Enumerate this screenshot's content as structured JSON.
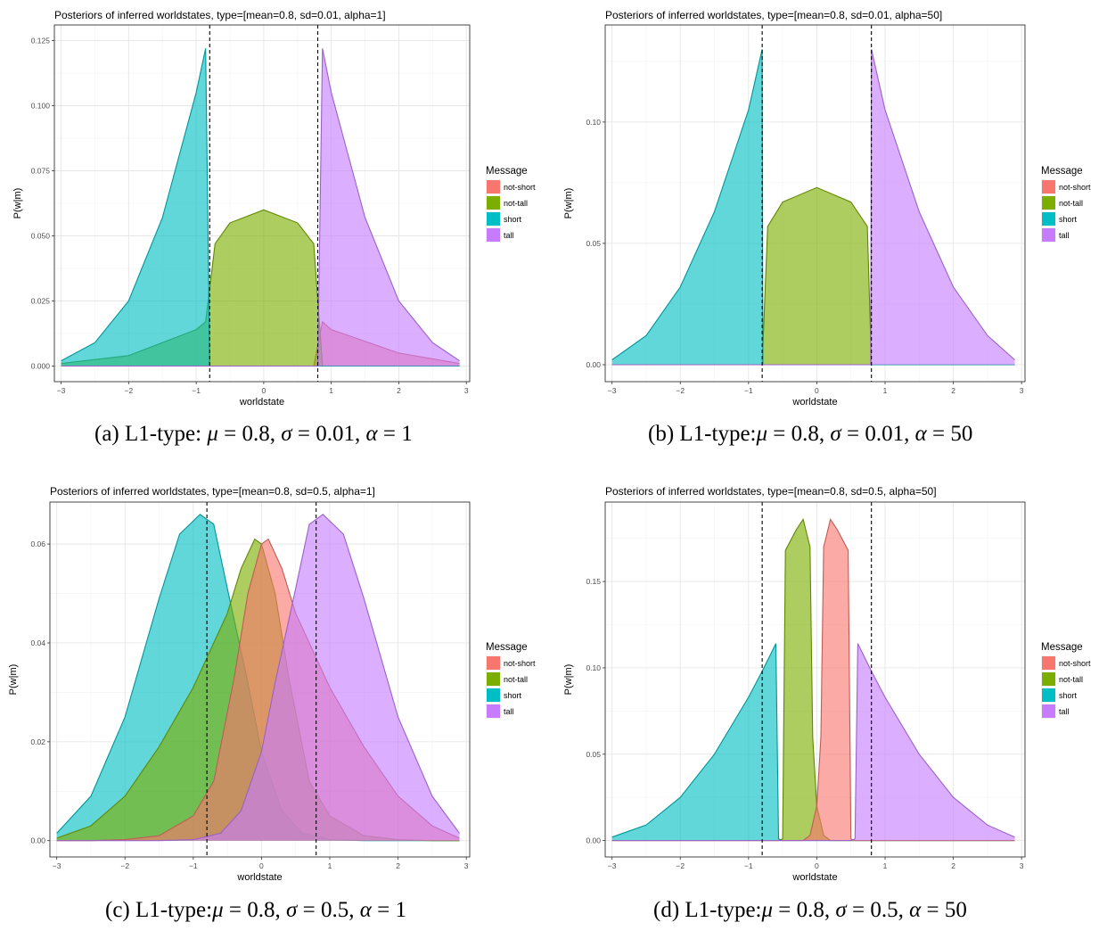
{
  "colors": {
    "not-short": "#F8766D",
    "not-tall": "#7CAE00",
    "short": "#00BFC4",
    "tall": "#C77CFF"
  },
  "captions": [
    {
      "prefix": "(a) L1-type: ",
      "mu": "0.8",
      "sigma": "0.01",
      "alpha": "1"
    },
    {
      "prefix": "(b) L1-type:",
      "mu": "0.8",
      "sigma": "0.01",
      "alpha": "50"
    },
    {
      "prefix": "(c) L1-type:",
      "mu": "0.8",
      "sigma": "0.5",
      "alpha": "1"
    },
    {
      "prefix": "(d) L1-type:",
      "mu": "0.8",
      "sigma": "0.5",
      "alpha": "50"
    }
  ],
  "chart_data": [
    {
      "type": "area",
      "title": "Posteriors of inferred worldstates, type=[mean=0.8, sd=0.01, alpha=1]",
      "xlabel": "worldstate",
      "ylabel": "P(w|m)",
      "xlim": [
        -3.1,
        3.05
      ],
      "ylim": [
        -0.006,
        0.131
      ],
      "xticks": [
        -3,
        -2,
        -1,
        0,
        1,
        2,
        3
      ],
      "yticks": [
        0,
        0.025,
        0.05,
        0.075,
        0.1,
        0.125
      ],
      "ytick_labels": [
        "0.000",
        "0.025",
        "0.050",
        "0.075",
        "0.100",
        "0.125"
      ],
      "grid": true,
      "vlines": [
        -0.8,
        0.8
      ],
      "legend": {
        "title": "Message",
        "position": "right",
        "items": [
          "not-short",
          "not-tall",
          "short",
          "tall"
        ]
      },
      "series": [
        {
          "name": "not-short",
          "x": [
            -3,
            -2,
            -1,
            -0.86,
            -0.72,
            -0.5,
            0,
            0.5,
            0.74,
            0.87,
            1,
            2,
            2.9
          ],
          "y": [
            0,
            0,
            0,
            0,
            0,
            0,
            0,
            0,
            0,
            0.017,
            0.014,
            0.005,
            0.001
          ]
        },
        {
          "name": "not-tall",
          "x": [
            -3,
            -2,
            -1,
            -0.86,
            -0.72,
            -0.5,
            0,
            0.5,
            0.74,
            0.87,
            1,
            2,
            2.9
          ],
          "y": [
            0.001,
            0.004,
            0.014,
            0.017,
            0.047,
            0.055,
            0.06,
            0.055,
            0.047,
            0,
            0,
            0,
            0
          ]
        },
        {
          "name": "short",
          "x": [
            -3,
            -2.5,
            -2,
            -1.5,
            -1,
            -0.86,
            -0.8,
            -0.72,
            -0.5,
            0,
            0.5,
            0.74,
            0.87,
            1,
            2,
            2.9
          ],
          "y": [
            0.002,
            0.009,
            0.025,
            0.057,
            0.105,
            0.122,
            0,
            0,
            0,
            0,
            0,
            0,
            0,
            0,
            0,
            0
          ]
        },
        {
          "name": "tall",
          "x": [
            -3,
            -2,
            -1,
            -0.86,
            -0.72,
            -0.5,
            0,
            0.5,
            0.74,
            0.8,
            0.87,
            1,
            1.5,
            2,
            2.5,
            2.9
          ],
          "y": [
            0,
            0,
            0,
            0,
            0,
            0,
            0,
            0,
            0,
            0,
            0.122,
            0.105,
            0.057,
            0.025,
            0.009,
            0.002
          ]
        }
      ]
    },
    {
      "type": "area",
      "title": "Posteriors of inferred worldstates, type=[mean=0.8, sd=0.01, alpha=50]",
      "xlabel": "worldstate",
      "ylabel": "P(w|m)",
      "xlim": [
        -3.1,
        3.05
      ],
      "ylim": [
        -0.007,
        0.14
      ],
      "xticks": [
        -3,
        -2,
        -1,
        0,
        1,
        2,
        3
      ],
      "yticks": [
        0,
        0.05,
        0.1
      ],
      "ytick_labels": [
        "0.00",
        "0.05",
        "0.10"
      ],
      "grid": true,
      "vlines": [
        -0.8,
        0.8
      ],
      "legend": {
        "title": "Message",
        "position": "right",
        "items": [
          "not-short",
          "not-tall",
          "short",
          "tall"
        ]
      },
      "series": [
        {
          "name": "not-short",
          "x": [
            -3,
            0.8,
            2.9
          ],
          "y": [
            0,
            0,
            0
          ]
        },
        {
          "name": "not-tall",
          "x": [
            -3,
            -0.8,
            -0.72,
            -0.5,
            0,
            0.5,
            0.74,
            0.8,
            2.9
          ],
          "y": [
            0,
            0,
            0.057,
            0.067,
            0.073,
            0.067,
            0.057,
            0,
            0
          ]
        },
        {
          "name": "short",
          "x": [
            -3,
            -2.5,
            -2,
            -1.5,
            -1,
            -0.8,
            -0.79,
            2.9
          ],
          "y": [
            0.002,
            0.012,
            0.032,
            0.063,
            0.105,
            0.13,
            0,
            0
          ]
        },
        {
          "name": "tall",
          "x": [
            -3,
            0.79,
            0.8,
            1,
            1.5,
            2,
            2.5,
            2.9
          ],
          "y": [
            0,
            0,
            0.13,
            0.105,
            0.063,
            0.032,
            0.012,
            0.002
          ]
        }
      ]
    },
    {
      "type": "area",
      "title": "Posteriors of inferred worldstates, type=[mean=0.8, sd=0.5, alpha=1]",
      "xlabel": "worldstate",
      "ylabel": "P(w|m)",
      "xlim": [
        -3.1,
        3.05
      ],
      "ylim": [
        -0.0033,
        0.0685
      ],
      "xticks": [
        -3,
        -2,
        -1,
        0,
        1,
        2,
        3
      ],
      "yticks": [
        0,
        0.02,
        0.04,
        0.06
      ],
      "ytick_labels": [
        "0.00",
        "0.02",
        "0.04",
        "0.06"
      ],
      "grid": true,
      "vlines": [
        -0.8,
        0.8
      ],
      "legend": {
        "title": "Message",
        "position": "right",
        "items": [
          "not-short",
          "not-tall",
          "short",
          "tall"
        ]
      },
      "series": [
        {
          "name": "short",
          "x": [
            -3,
            -2.5,
            -2,
            -1.5,
            -1.2,
            -0.9,
            -0.7,
            -0.5,
            -0.2,
            0,
            0.3,
            0.6,
            1,
            1.5,
            2,
            2.5,
            2.9
          ],
          "y": [
            0.0015,
            0.009,
            0.025,
            0.049,
            0.062,
            0.066,
            0.064,
            0.051,
            0.032,
            0.018,
            0.006,
            0.0015,
            0.0002,
            0,
            0,
            0,
            0
          ]
        },
        {
          "name": "not-tall",
          "x": [
            -3,
            -2.5,
            -2,
            -1.5,
            -1,
            -0.5,
            -0.3,
            -0.1,
            0,
            0.2,
            0.4,
            0.7,
            1,
            1.5,
            2,
            2.5,
            2.9
          ],
          "y": [
            0.0005,
            0.003,
            0.009,
            0.019,
            0.031,
            0.046,
            0.055,
            0.061,
            0.06,
            0.05,
            0.033,
            0.012,
            0.005,
            0.001,
            0.0002,
            0,
            0
          ]
        },
        {
          "name": "not-short",
          "x": [
            -3,
            -2.5,
            -2,
            -1.5,
            -1,
            -0.7,
            -0.4,
            -0.2,
            0,
            0.1,
            0.3,
            0.5,
            1,
            1.5,
            2,
            2.5,
            2.9
          ],
          "y": [
            0,
            0,
            0.0002,
            0.001,
            0.005,
            0.012,
            0.033,
            0.05,
            0.06,
            0.061,
            0.055,
            0.046,
            0.031,
            0.019,
            0.009,
            0.003,
            0.0005
          ]
        },
        {
          "name": "tall",
          "x": [
            -3,
            -2.5,
            -2,
            -1.5,
            -1,
            -0.6,
            -0.3,
            0,
            0.2,
            0.5,
            0.7,
            0.9,
            1.2,
            1.5,
            2,
            2.5,
            2.9
          ],
          "y": [
            0,
            0,
            0,
            0,
            0.0002,
            0.0015,
            0.006,
            0.018,
            0.032,
            0.051,
            0.064,
            0.066,
            0.062,
            0.049,
            0.025,
            0.009,
            0.0015
          ]
        }
      ]
    },
    {
      "type": "area",
      "title": "Posteriors of inferred worldstates, type=[mean=0.8, sd=0.5, alpha=50]",
      "xlabel": "worldstate",
      "ylabel": "P(w|m)",
      "xlim": [
        -3.1,
        3.05
      ],
      "ylim": [
        -0.0095,
        0.196
      ],
      "xticks": [
        -3,
        -2,
        -1,
        0,
        1,
        2,
        3
      ],
      "yticks": [
        0,
        0.05,
        0.1,
        0.15
      ],
      "ytick_labels": [
        "0.00",
        "0.05",
        "0.10",
        "0.15"
      ],
      "grid": true,
      "vlines": [
        -0.8,
        0.8
      ],
      "legend": {
        "title": "Message",
        "position": "right",
        "items": [
          "not-short",
          "not-tall",
          "short",
          "tall"
        ]
      },
      "series": [
        {
          "name": "short",
          "x": [
            -3,
            -2.5,
            -2,
            -1.5,
            -1,
            -0.8,
            -0.6,
            -0.56,
            -0.5,
            2.9
          ],
          "y": [
            0.002,
            0.009,
            0.025,
            0.05,
            0.083,
            0.098,
            0.114,
            0.001,
            0,
            0
          ]
        },
        {
          "name": "not-tall",
          "x": [
            -3,
            -0.56,
            -0.5,
            -0.46,
            -0.3,
            -0.2,
            -0.1,
            -0.06,
            0,
            0.1,
            0.2,
            2.9
          ],
          "y": [
            0,
            0,
            0.001,
            0.168,
            0.18,
            0.186,
            0.17,
            0.06,
            0.02,
            0.003,
            0,
            0
          ]
        },
        {
          "name": "not-short",
          "x": [
            -3,
            -0.2,
            -0.1,
            0,
            0.06,
            0.1,
            0.2,
            0.3,
            0.46,
            0.5,
            0.56,
            2.9
          ],
          "y": [
            0,
            0,
            0.003,
            0.02,
            0.06,
            0.17,
            0.186,
            0.18,
            0.168,
            0.001,
            0,
            0
          ]
        },
        {
          "name": "tall",
          "x": [
            -3,
            0.5,
            0.56,
            0.6,
            0.8,
            1,
            1.5,
            2,
            2.5,
            2.9
          ],
          "y": [
            0,
            0,
            0.001,
            0.114,
            0.098,
            0.083,
            0.05,
            0.025,
            0.009,
            0.002
          ]
        }
      ]
    }
  ]
}
